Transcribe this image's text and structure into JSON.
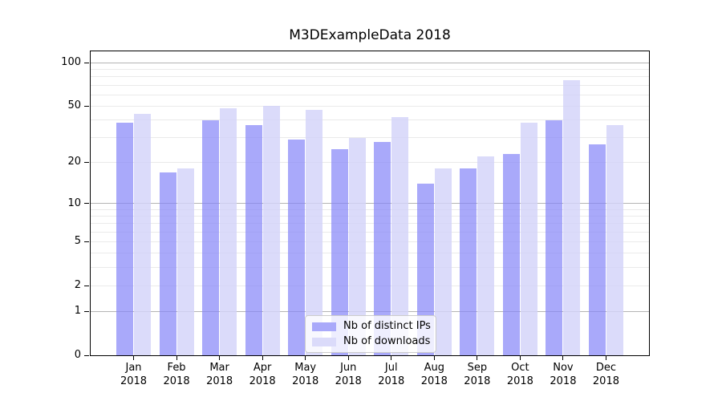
{
  "figure": {
    "background_color": "#ffffff"
  },
  "chart_data": {
    "type": "bar",
    "title": "M3DExampleData 2018",
    "xlabel": "",
    "ylabel": "",
    "year": "2018",
    "categories": [
      "Jan",
      "Feb",
      "Mar",
      "Apr",
      "May",
      "Jun",
      "Jul",
      "Aug",
      "Sep",
      "Oct",
      "Nov",
      "Dec"
    ],
    "series": [
      {
        "name": "Nb of distinct IPs",
        "color": "#a9a9fa",
        "rgba": "rgba(133,133,248,0.70)",
        "values": [
          38,
          17,
          40,
          37,
          29,
          25,
          28,
          14,
          18,
          23,
          40,
          27
        ]
      },
      {
        "name": "Nb of downloads",
        "color": "#dbdbfa",
        "rgba": "rgba(211,211,249,0.82)",
        "values": [
          44,
          18,
          48,
          50,
          47,
          30,
          42,
          18,
          22,
          38,
          76,
          37
        ]
      }
    ],
    "yscale": "log1p",
    "ylim": [
      0,
      120
    ],
    "yticks": [
      100,
      50,
      20,
      10,
      5,
      2,
      1,
      0
    ],
    "major_gridlines": [
      1,
      10,
      100
    ],
    "minor_gridlines": [
      2,
      3,
      4,
      5,
      6,
      7,
      8,
      9,
      20,
      30,
      40,
      50,
      60,
      70,
      80,
      90
    ],
    "grid": true,
    "legend_position": "lower center-left",
    "colors": {
      "major_grid": "#b4b4b4",
      "minor_grid": "#eaeaea",
      "spine": "#000000"
    }
  }
}
